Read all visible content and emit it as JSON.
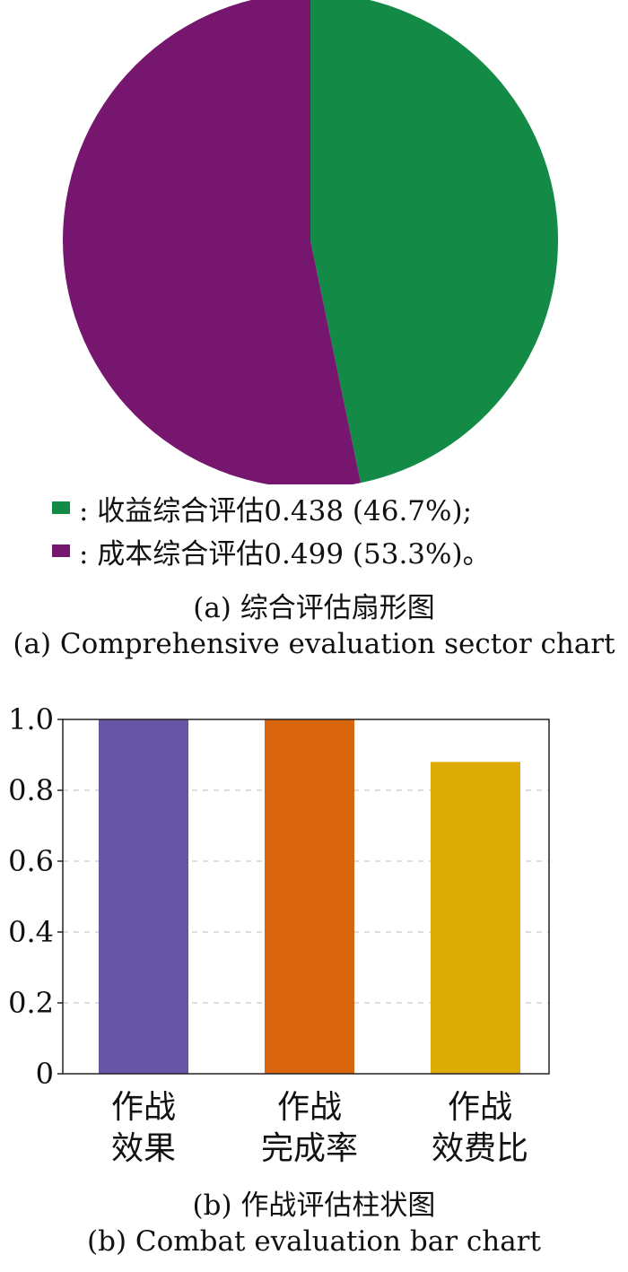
{
  "chart_data": [
    {
      "type": "pie",
      "slices": [
        {
          "label": "收益综合评估",
          "value": 0.438,
          "percent": 46.7,
          "color": "#138a45"
        },
        {
          "label": "成本综合评估",
          "value": 0.499,
          "percent": 53.3,
          "color": "#76166f"
        }
      ],
      "legend": [
        {
          "text": ": 收益综合评估0.438 (46.7%);",
          "color": "#138a45"
        },
        {
          "text": ": 成本综合评估0.499 (53.3%)。",
          "color": "#76166f"
        }
      ],
      "caption_cn": "(a) 综合评估扇形图",
      "caption_en": "(a) Comprehensive evaluation sector chart"
    },
    {
      "type": "bar",
      "categories": [
        {
          "line1": "作战",
          "line2": "效果"
        },
        {
          "line1": "作战",
          "line2": "完成率"
        },
        {
          "line1": "作战",
          "line2": "效费比"
        }
      ],
      "values": [
        1.0,
        1.0,
        0.88
      ],
      "colors": [
        "#6756a5",
        "#d9650f",
        "#dcab06"
      ],
      "ylim": [
        0,
        1.0
      ],
      "yticks": [
        "0",
        "0.2",
        "0.4",
        "0.6",
        "0.8",
        "1.0"
      ],
      "grid": true,
      "caption_cn": "(b) 作战评估柱状图",
      "caption_en": "(b) Combat evaluation bar chart"
    }
  ]
}
